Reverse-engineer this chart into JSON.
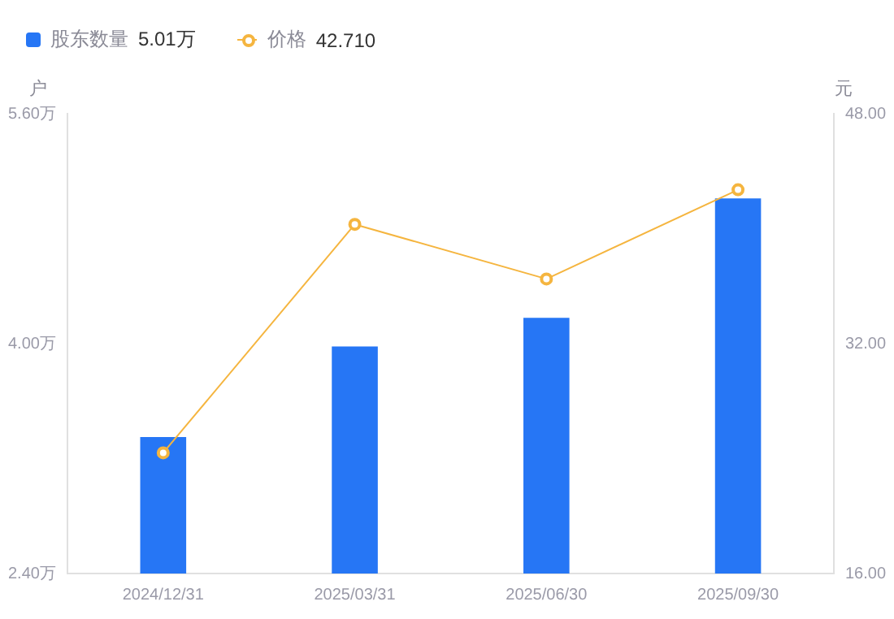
{
  "chart_data": {
    "type": "bar",
    "categories": [
      "2024/12/31",
      "2025/03/31",
      "2025/06/30",
      "2025/09/30"
    ],
    "series": [
      {
        "name": "股东数量",
        "color": "#2676f5",
        "values": [
          3.35,
          3.98,
          4.18,
          5.01
        ]
      },
      {
        "name": "价格",
        "type": "line",
        "axis": "y2",
        "color": "#f5b53f",
        "values": [
          24.4,
          40.3,
          36.5,
          42.71
        ],
        "marker": "circle"
      }
    ],
    "ylabel": "户",
    "y2label": "元",
    "ylim": [
      2.4,
      5.6
    ],
    "yticks": [
      {
        "value": 2.4,
        "label": "2.40万"
      },
      {
        "value": 4.0,
        "label": "4.00万"
      },
      {
        "value": 5.6,
        "label": "5.60万"
      }
    ],
    "y2lim": [
      16,
      48
    ],
    "y2ticks": [
      {
        "value": 16,
        "label": "16.00"
      },
      {
        "value": 32,
        "label": "32.00"
      },
      {
        "value": 48,
        "label": "48.00"
      }
    ],
    "legend": "top left",
    "grid": false,
    "annotations": [
      "5.01万",
      "42.710"
    ]
  }
}
